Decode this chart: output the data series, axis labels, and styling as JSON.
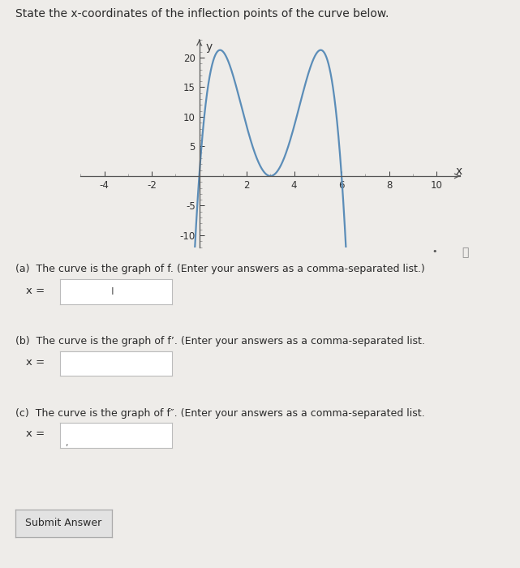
{
  "title": "State the x-coordinates of the inflection points of the curve below.",
  "bg_color": "#eeece9",
  "curve_color": "#5b8db8",
  "curve_linewidth": 1.6,
  "xlim": [
    -5,
    11
  ],
  "ylim": [
    -12,
    23
  ],
  "xticks": [
    -4,
    -2,
    2,
    4,
    6,
    8,
    10
  ],
  "yticks": [
    -10,
    -5,
    5,
    10,
    15,
    20
  ],
  "xlabel": "x",
  "ylabel": "y",
  "part_a_label": "(a)  The curve is the graph of f. (Enter your answers as a comma-separated list.)",
  "part_b_label": "(b)  The curve is the graph of f’. (Enter your answers as a comma-separated list.",
  "part_c_label": "(c)  The curve is the graph of f″. (Enter your answers as a comma-separated list.",
  "x_eq": "x =",
  "submit_label": "Submit Answer",
  "font_color": "#2a2a2a",
  "input_box_color": "#ffffff",
  "input_border_color": "#bbbbbb",
  "curve_A": 1.05
}
